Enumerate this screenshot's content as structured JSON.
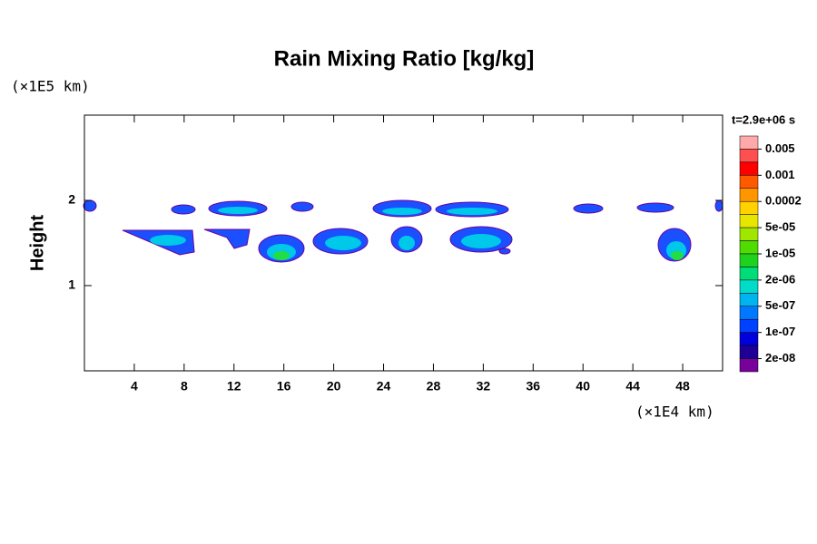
{
  "chart_data": {
    "type": "contour",
    "title": "Rain Mixing Ratio [kg/kg]",
    "ylabel": "Height",
    "y_unit": "(×1E5 km)",
    "x_unit": "(×1E4 km)",
    "time_label": "t=2.9e+06 s",
    "xlim": [
      0,
      51.2
    ],
    "xticks": [
      4,
      8,
      12,
      16,
      20,
      24,
      28,
      32,
      36,
      40,
      44,
      48
    ],
    "ylim": [
      0,
      3
    ],
    "yticks": [
      1,
      2
    ],
    "colorbar": {
      "colors": [
        "#ffaaaa",
        "#ff5050",
        "#ff0000",
        "#ff5a00",
        "#ff9600",
        "#ffd200",
        "#e6e600",
        "#a0e600",
        "#50dc00",
        "#1ed21e",
        "#00dc78",
        "#00dcc8",
        "#00b4f0",
        "#0078ff",
        "#0040ff",
        "#0000dc",
        "#1e0096",
        "#78009b"
      ],
      "labels": [
        {
          "value": 0.005,
          "label": "0.005"
        },
        {
          "value": 0.001,
          "label": "0.001"
        },
        {
          "value": 0.0002,
          "label": "0.0002"
        },
        {
          "value": 5e-05,
          "label": "5e-05"
        },
        {
          "value": 1e-05,
          "label": "1e-05"
        },
        {
          "value": 2e-06,
          "label": "2e-06"
        },
        {
          "value": 5e-07,
          "label": "5e-07"
        },
        {
          "value": 1e-07,
          "label": "1e-07"
        },
        {
          "value": 2e-08,
          "label": "2e-08"
        }
      ]
    }
  }
}
